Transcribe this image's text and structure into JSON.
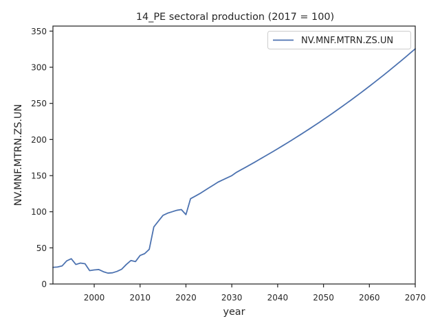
{
  "chart_data": {
    "type": "line",
    "title": "14_PE sectoral production (2017 = 100)",
    "xlabel": "year",
    "ylabel": "NV.MNF.MTRN.ZS.UN",
    "xlim": [
      1991,
      2070
    ],
    "ylim": [
      0,
      357
    ],
    "xticks": [
      2000,
      2010,
      2020,
      2030,
      2040,
      2050,
      2060,
      2070
    ],
    "yticks": [
      0,
      50,
      100,
      150,
      200,
      250,
      300,
      350
    ],
    "grid": false,
    "legend_position": "upper right",
    "series": [
      {
        "name": "NV.MNF.MTRN.ZS.UN",
        "color": "#4c72b0",
        "x": [
          1991,
          1992,
          1993,
          1994,
          1995,
          1996,
          1997,
          1998,
          1999,
          2000,
          2001,
          2002,
          2003,
          2004,
          2005,
          2006,
          2007,
          2008,
          2009,
          2010,
          2011,
          2012,
          2013,
          2014,
          2015,
          2016,
          2017,
          2018,
          2019,
          2020,
          2021,
          2022,
          2023,
          2024,
          2025,
          2026,
          2027,
          2028,
          2029,
          2030,
          2031,
          2032,
          2033,
          2034,
          2035,
          2036,
          2037,
          2038,
          2039,
          2040,
          2041,
          2042,
          2043,
          2044,
          2045,
          2046,
          2047,
          2048,
          2049,
          2050,
          2051,
          2052,
          2053,
          2054,
          2055,
          2056,
          2057,
          2058,
          2059,
          2060,
          2061,
          2062,
          2063,
          2064,
          2065,
          2066,
          2067,
          2068,
          2069,
          2070
        ],
        "y": [
          23,
          23.5,
          25,
          32,
          35,
          27,
          29,
          28,
          18.5,
          19.5,
          20,
          17,
          15,
          15.5,
          17.5,
          20.5,
          27,
          32.5,
          31,
          39.5,
          42,
          48,
          79,
          87,
          95,
          98,
          100,
          102,
          103,
          96,
          118,
          121.5,
          125,
          129,
          133,
          137,
          141,
          144,
          147,
          150,
          154.5,
          158,
          161.5,
          165,
          168.6,
          172.3,
          176,
          179.7,
          183.4,
          187.2,
          191,
          194.9,
          198.8,
          202.8,
          206.8,
          210.9,
          215,
          219.2,
          223.4,
          227.7,
          232,
          236.4,
          240.9,
          245.4,
          250,
          254.6,
          259.3,
          264,
          268.8,
          273.7,
          278.6,
          283.6,
          288.6,
          293.7,
          298.9,
          304.1,
          309.4,
          314.7,
          320.1,
          325.5
        ]
      }
    ]
  }
}
